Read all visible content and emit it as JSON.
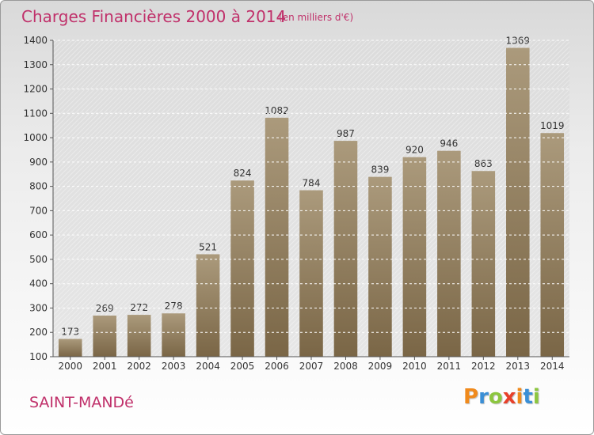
{
  "chart_data": {
    "type": "bar",
    "title": "Charges Financières 2000 à 2014",
    "subtitle": "(en milliers d'€)",
    "categories": [
      "2000",
      "2001",
      "2002",
      "2003",
      "2004",
      "2005",
      "2006",
      "2007",
      "2008",
      "2009",
      "2010",
      "2011",
      "2012",
      "2013",
      "2014"
    ],
    "values": [
      173,
      269,
      272,
      278,
      521,
      824,
      1082,
      784,
      987,
      839,
      920,
      946,
      863,
      1369,
      1019
    ],
    "ylim": [
      100,
      1400
    ],
    "yticks": [
      100,
      200,
      300,
      400,
      500,
      600,
      700,
      800,
      900,
      1000,
      1100,
      1200,
      1300,
      1400
    ],
    "grid": true,
    "bar_color_top": "#ab9a7c",
    "bar_color_bottom": "#7a6646",
    "xlabel": "",
    "ylabel": ""
  },
  "footer": {
    "city": "SAINT-MANDé",
    "logo_letters": [
      {
        "char": "P",
        "color": "#f08a1c"
      },
      {
        "char": "r",
        "color": "#3a8fd6"
      },
      {
        "char": "o",
        "color": "#8cc63f"
      },
      {
        "char": "x",
        "color": "#e8402a"
      },
      {
        "char": "i",
        "color": "#f08a1c"
      },
      {
        "char": "t",
        "color": "#3a8fd6"
      },
      {
        "char": "i",
        "color": "#8cc63f"
      }
    ]
  },
  "colors": {
    "accent": "#c0306a",
    "grid": "#ffffff",
    "axis": "#555555"
  }
}
